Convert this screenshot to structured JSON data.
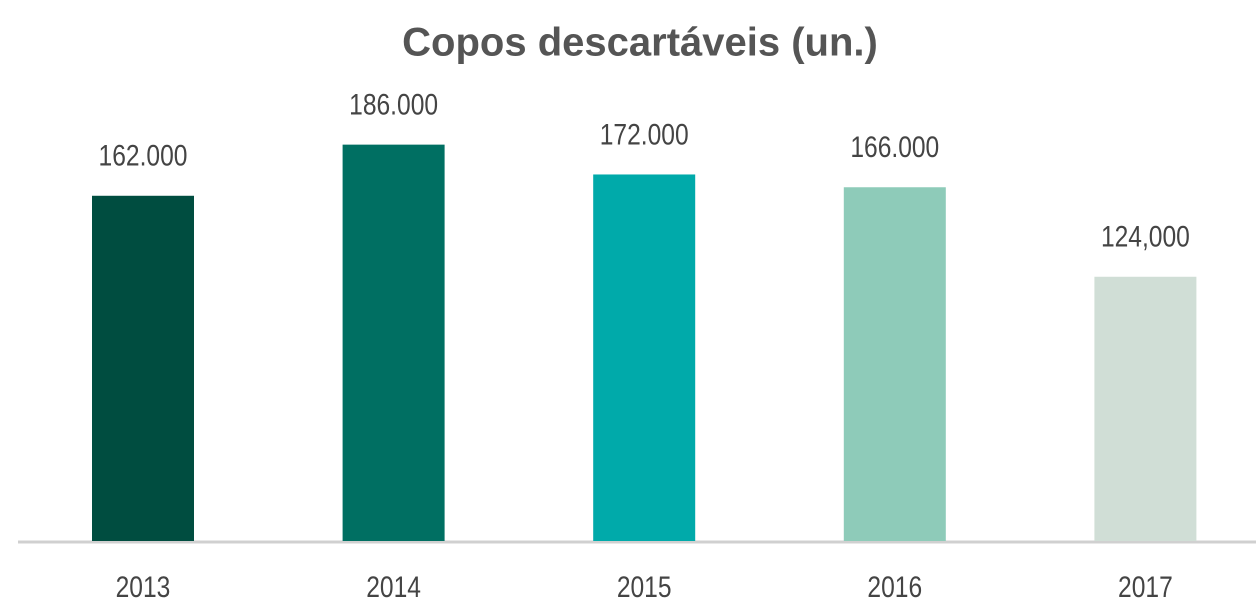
{
  "chart_data": {
    "type": "bar",
    "title": "Copos descartáveis (un.)",
    "categories": [
      "2013",
      "2014",
      "2015",
      "2016",
      "2017"
    ],
    "values": [
      162000,
      186000,
      172000,
      166000,
      124000
    ],
    "value_labels": [
      "162.000",
      "186.000",
      "172.000",
      "166.000",
      "124,000"
    ],
    "colors": [
      "#004d40",
      "#006f62",
      "#00aaaa",
      "#8ecbb9",
      "#d0ded6"
    ]
  }
}
